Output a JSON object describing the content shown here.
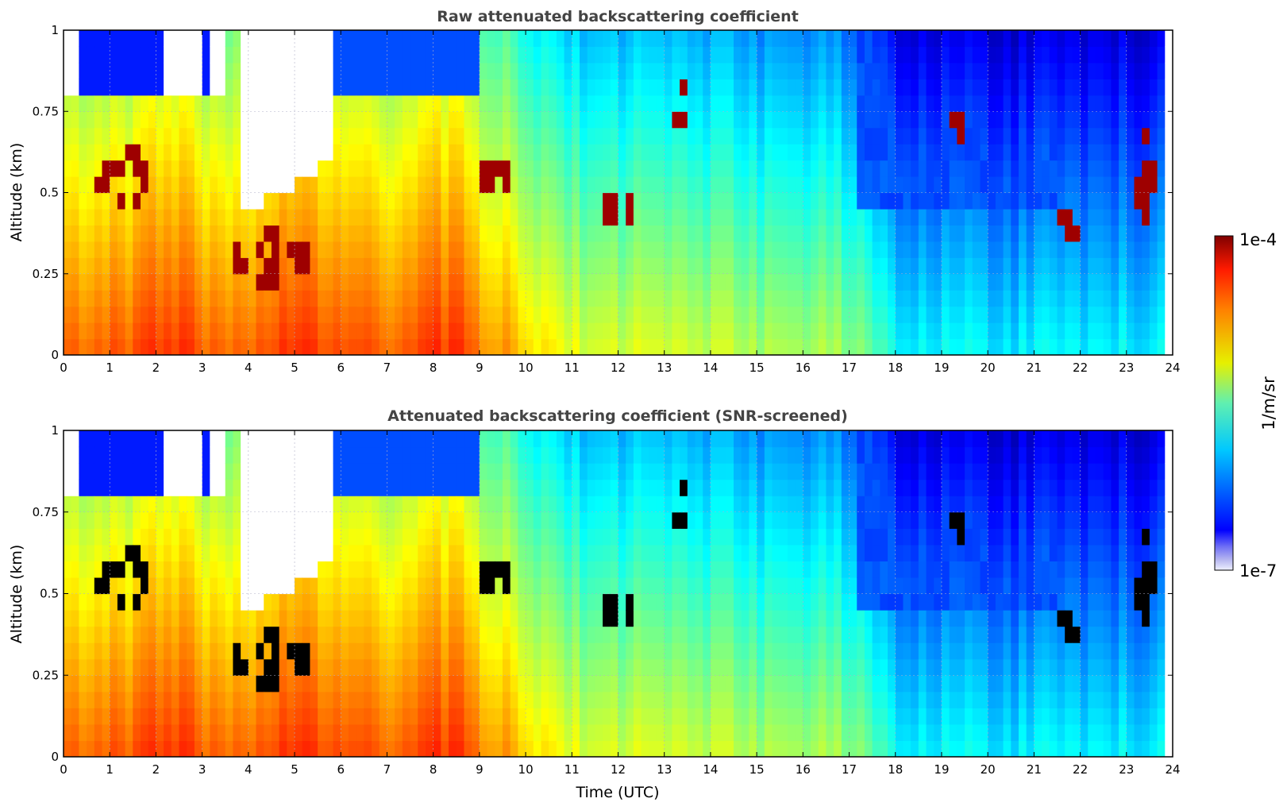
{
  "chart_data": [
    {
      "type": "heatmap",
      "title": "Raw attenuated backscattering coefficient",
      "xlabel": "",
      "ylabel": "Altitude (km)",
      "xlim": [
        0,
        24
      ],
      "ylim": [
        0,
        1
      ],
      "x_ticks": [
        "0",
        "1",
        "2",
        "3",
        "4",
        "5",
        "6",
        "7",
        "8",
        "9",
        "10",
        "11",
        "12",
        "13",
        "14",
        "15",
        "16",
        "17",
        "18",
        "19",
        "20",
        "21",
        "22",
        "23",
        "24"
      ],
      "y_ticks": [
        "0",
        "0.25",
        "0.5",
        "0.75",
        "1"
      ],
      "grid": true,
      "screened": false
    },
    {
      "type": "heatmap",
      "title": "Attenuated backscattering coefficient (SNR-screened)",
      "xlabel": "Time (UTC)",
      "ylabel": "Altitude (km)",
      "xlim": [
        0,
        24
      ],
      "ylim": [
        0,
        1
      ],
      "x_ticks": [
        "0",
        "1",
        "2",
        "3",
        "4",
        "5",
        "6",
        "7",
        "8",
        "9",
        "10",
        "11",
        "12",
        "13",
        "14",
        "15",
        "16",
        "17",
        "18",
        "19",
        "20",
        "21",
        "22",
        "23",
        "24"
      ],
      "y_ticks": [
        "0",
        "0.25",
        "0.5",
        "0.75",
        "1"
      ],
      "grid": true,
      "screened": true
    }
  ],
  "colorbar": {
    "label": "1/m/sr",
    "max_label": "1e-4",
    "min_label": "1e-7",
    "scale": "log",
    "range": [
      1e-07,
      0.0001
    ],
    "colormap": "jet"
  },
  "colors": {
    "title": "#444444",
    "grid": "#b0b0c8",
    "screened_mask": "#000000"
  }
}
